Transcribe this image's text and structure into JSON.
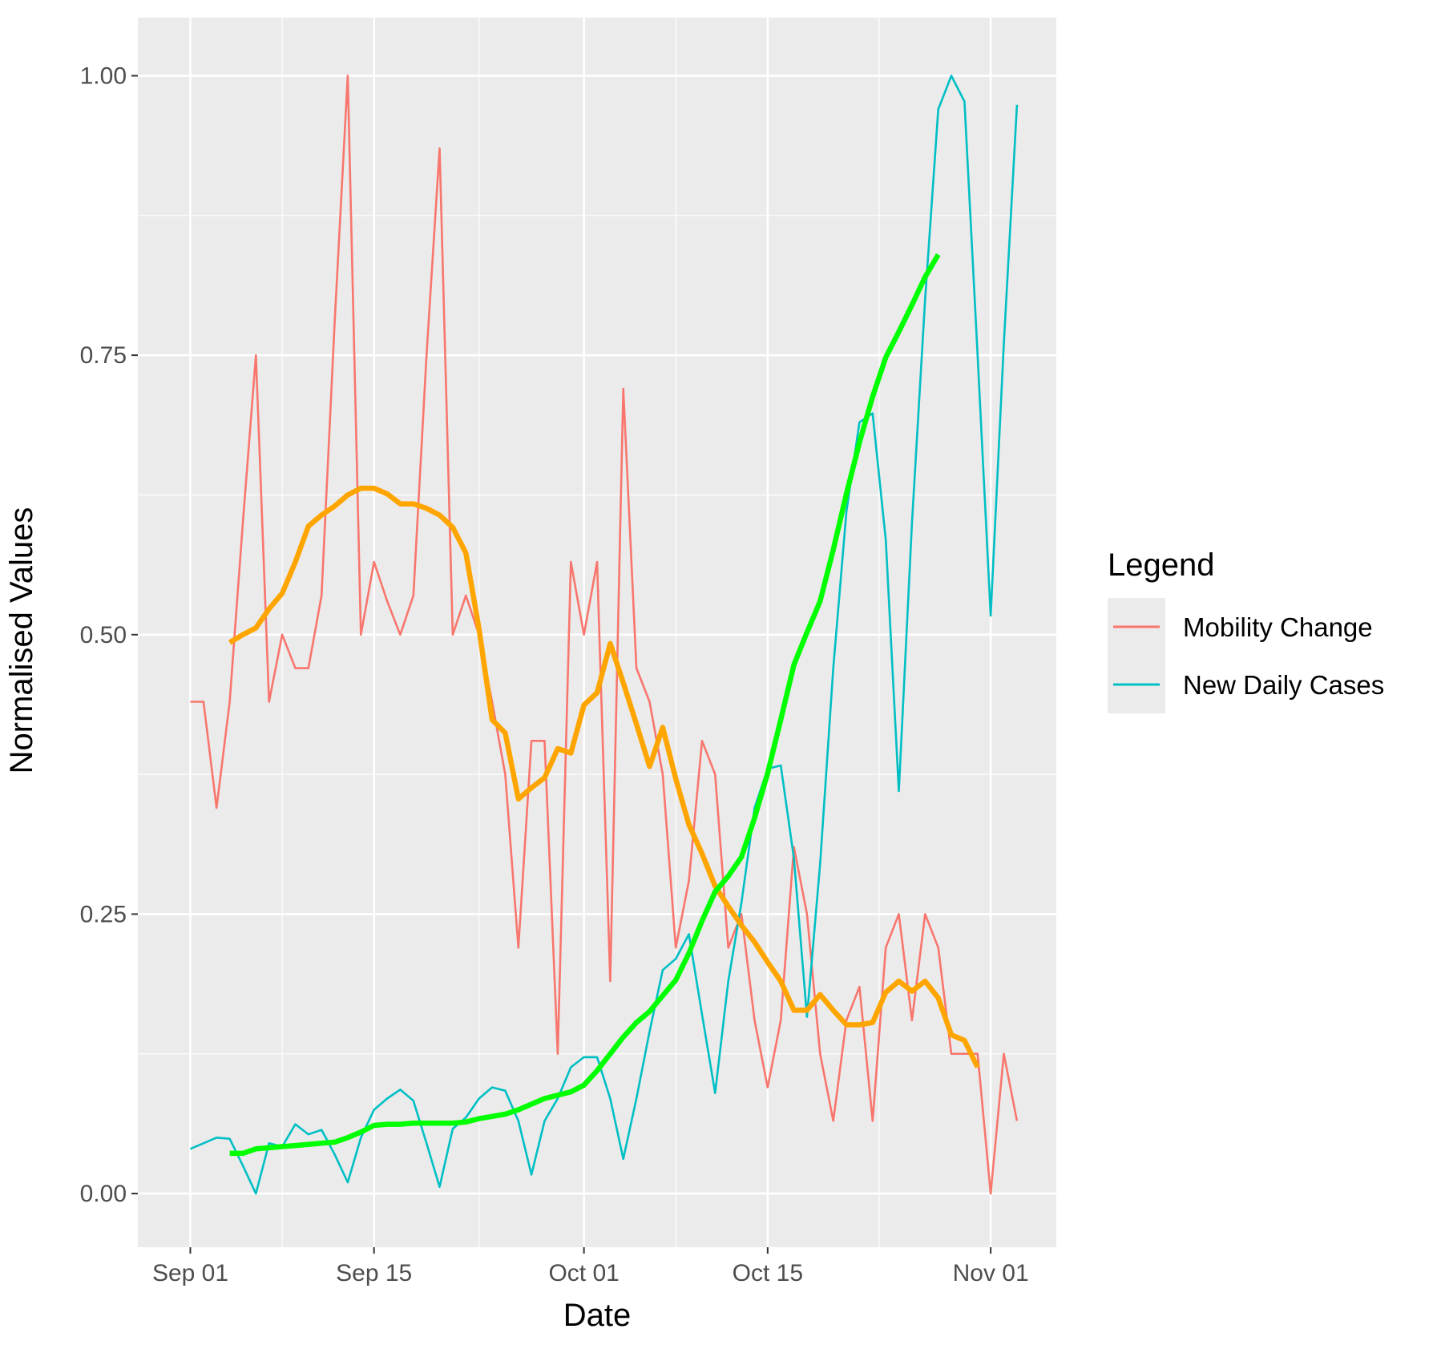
{
  "chart_data": {
    "type": "line",
    "xlabel": "Date",
    "ylabel": "Normalised Values",
    "x_ticks": [
      "Sep 01",
      "Sep 15",
      "Oct 01",
      "Oct 15",
      "Nov 01"
    ],
    "x_tick_dates": [
      "2020-09-01",
      "2020-09-15",
      "2020-10-01",
      "2020-10-15",
      "2020-11-01"
    ],
    "x_range": [
      "2020-08-28",
      "2020-11-06"
    ],
    "y_ticks": [
      "0.00",
      "0.25",
      "0.50",
      "0.75",
      "1.00"
    ],
    "y_tick_values": [
      0,
      0.25,
      0.5,
      0.75,
      1.0
    ],
    "ylim": [
      -0.048,
      1.052
    ],
    "grid": true,
    "panel_background": "#ebebeb",
    "grid_color": "#ffffff",
    "legend": {
      "title": "Legend",
      "placement": "right",
      "entries": [
        {
          "label": "Mobility Change",
          "color": "#f8766d"
        },
        {
          "label": "New Daily Cases",
          "color": "#00bfc4"
        }
      ]
    },
    "series": [
      {
        "name": "Mobility Change",
        "color": "#f8766d",
        "x_start": "2020-09-01",
        "values": [
          0.44,
          0.44,
          0.345,
          0.44,
          0.6,
          0.75,
          0.44,
          0.5,
          0.47,
          0.47,
          0.535,
          0.78,
          1.0,
          0.5,
          0.565,
          0.53,
          0.5,
          0.535,
          0.75,
          0.935,
          0.5,
          0.535,
          0.5,
          0.44,
          0.375,
          0.22,
          0.405,
          0.405,
          0.125,
          0.565,
          0.5,
          0.565,
          0.19,
          0.72,
          0.47,
          0.44,
          0.375,
          0.22,
          0.28,
          0.405,
          0.375,
          0.22,
          0.25,
          0.155,
          0.095,
          0.155,
          0.31,
          0.25,
          0.125,
          0.065,
          0.155,
          0.185,
          0.065,
          0.22,
          0.25,
          0.155,
          0.25,
          0.22,
          0.125,
          0.125,
          0.125,
          0.0,
          0.125,
          0.065
        ]
      },
      {
        "name": "New Daily Cases",
        "color": "#00bfc4",
        "x_start": "2020-09-01",
        "values": [
          0.04,
          0.045,
          0.05,
          0.049,
          0.025,
          0.0,
          0.045,
          0.042,
          0.062,
          0.053,
          0.057,
          0.035,
          0.01,
          0.05,
          0.075,
          0.085,
          0.093,
          0.083,
          0.045,
          0.006,
          0.058,
          0.068,
          0.085,
          0.095,
          0.092,
          0.065,
          0.017,
          0.065,
          0.085,
          0.113,
          0.122,
          0.122,
          0.085,
          0.031,
          0.085,
          0.145,
          0.2,
          0.21,
          0.232,
          0.16,
          0.09,
          0.19,
          0.26,
          0.345,
          0.38,
          0.383,
          0.3,
          0.158,
          0.295,
          0.47,
          0.61,
          0.69,
          0.698,
          0.585,
          0.36,
          0.6,
          0.8,
          0.97,
          1.0,
          0.977,
          0.75,
          0.517,
          0.76,
          0.974
        ]
      },
      {
        "name": "",
        "color": "#ffa500",
        "x_start": "2020-09-04",
        "values": [
          0.493,
          0.5,
          0.506,
          0.523,
          0.537,
          0.565,
          0.597,
          0.607,
          0.615,
          0.625,
          0.631,
          0.631,
          0.626,
          0.617,
          0.617,
          0.613,
          0.607,
          0.596,
          0.573,
          0.505,
          0.424,
          0.412,
          0.353,
          0.363,
          0.372,
          0.398,
          0.394,
          0.437,
          0.448,
          0.492,
          0.457,
          0.42,
          0.382,
          0.417,
          0.371,
          0.33,
          0.304,
          0.275,
          0.257,
          0.24,
          0.225,
          0.207,
          0.19,
          0.164,
          0.164,
          0.178,
          0.164,
          0.151,
          0.151,
          0.153,
          0.18,
          0.19,
          0.181,
          0.19,
          0.175,
          0.142,
          0.137,
          0.113
        ]
      },
      {
        "name": "",
        "color": "#00ff00",
        "x_start": "2020-09-04",
        "values": [
          0.036,
          0.036,
          0.04,
          0.041,
          0.042,
          0.043,
          0.044,
          0.045,
          0.046,
          0.05,
          0.055,
          0.061,
          0.062,
          0.062,
          0.063,
          0.063,
          0.063,
          0.063,
          0.064,
          0.067,
          0.069,
          0.071,
          0.075,
          0.08,
          0.085,
          0.088,
          0.091,
          0.097,
          0.11,
          0.125,
          0.14,
          0.153,
          0.163,
          0.177,
          0.191,
          0.215,
          0.244,
          0.27,
          0.284,
          0.301,
          0.336,
          0.376,
          0.424,
          0.473,
          0.502,
          0.53,
          0.576,
          0.626,
          0.672,
          0.713,
          0.748,
          0.771,
          0.795,
          0.82,
          0.84
        ]
      }
    ]
  }
}
